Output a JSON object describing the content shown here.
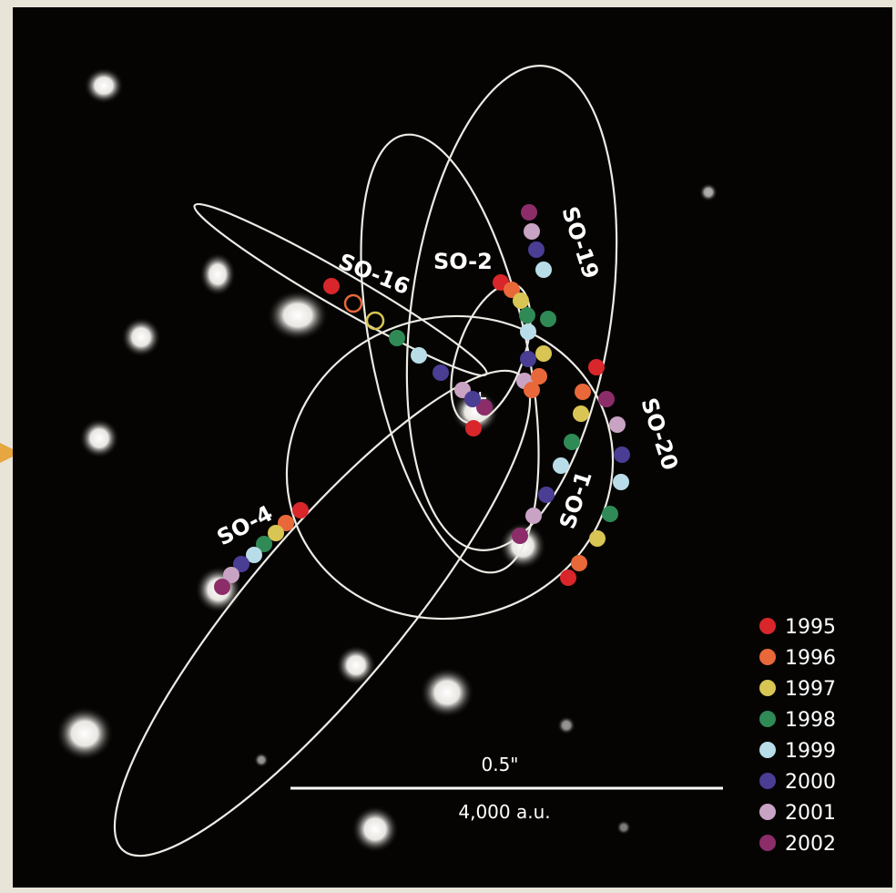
{
  "figure": {
    "star_labels": {
      "so16": "SO-16",
      "so2": "SO-2",
      "so19": "SO-19",
      "so20": "SO-20",
      "so1": "SO-1",
      "so4": "SO-4"
    },
    "scale_bar": {
      "angular": "0.5\"",
      "distance": "4,000 a.u."
    },
    "legend": [
      {
        "year": "1995",
        "color": "#d8262a"
      },
      {
        "year": "1996",
        "color": "#e8683a"
      },
      {
        "year": "1997",
        "color": "#d9c553"
      },
      {
        "year": "1998",
        "color": "#2f8a55"
      },
      {
        "year": "1999",
        "color": "#b9dde8"
      },
      {
        "year": "2000",
        "color": "#4a3d94"
      },
      {
        "year": "2001",
        "color": "#c9a3c3"
      },
      {
        "year": "2002",
        "color": "#8c2d6a"
      }
    ],
    "colors": {
      "sky": "#050403",
      "orbit_lines": "#ecebe4",
      "page": "#e9e4d8",
      "edge_marker": "#e6a640"
    }
  }
}
